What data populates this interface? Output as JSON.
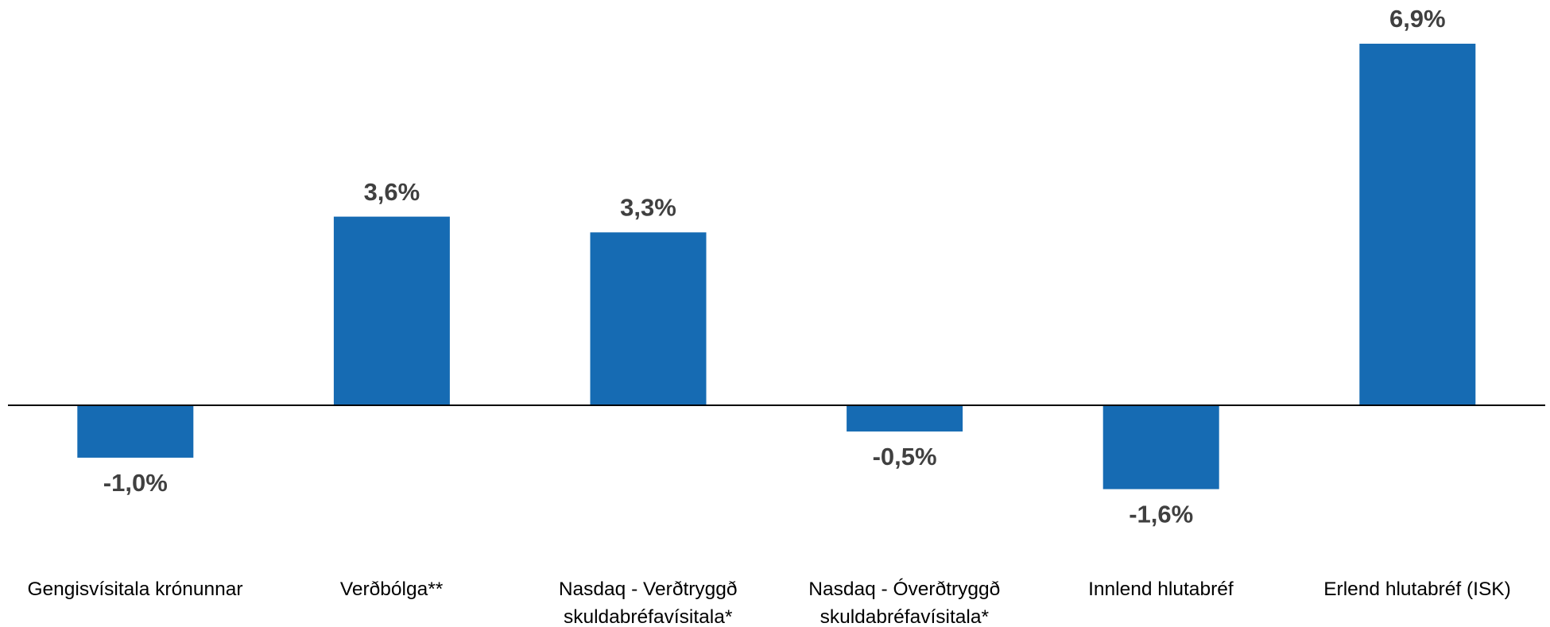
{
  "chart_data": {
    "type": "bar",
    "categories": [
      "Gengisvísitala krónunnar",
      "Verðbólga**",
      "Nasdaq - Verðtryggð skuldabréfavísitala*",
      "Nasdaq - Óverðtryggð skuldabréfavísitala*",
      "Innlend hlutabréf",
      "Erlend hlutabréf (ISK)"
    ],
    "values": [
      -1.0,
      3.6,
      3.3,
      -0.5,
      -1.6,
      6.9
    ],
    "value_labels": [
      "-1,0%",
      "3,6%",
      "3,3%",
      "-0,5%",
      "-1,6%",
      "6,9%"
    ],
    "color": "#166bb3"
  }
}
